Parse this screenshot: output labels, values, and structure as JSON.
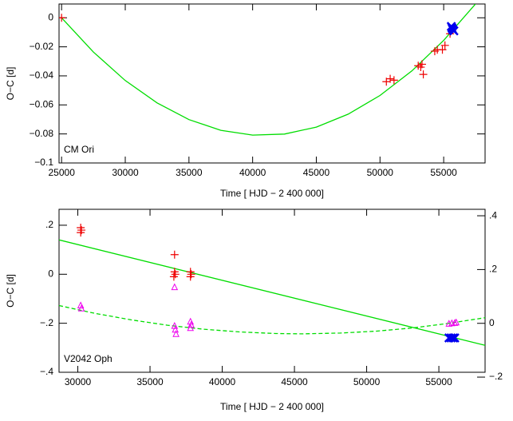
{
  "chart_data": [
    {
      "type": "scatter",
      "annotation": "CM Ori",
      "xlabel": "Time [ HJD − 2 400 000]",
      "ylabel": "O−C [d]",
      "xlim": [
        24800,
        58250
      ],
      "xticks": [
        25000,
        30000,
        35000,
        40000,
        45000,
        50000,
        55000
      ],
      "ylim": [
        -0.1,
        0.0095
      ],
      "yticks": [
        {
          "value": -0.1,
          "label": "−0.1"
        },
        {
          "value": -0.08,
          "label": "−0.08"
        },
        {
          "value": -0.06,
          "label": "−0.06"
        },
        {
          "value": -0.04,
          "label": "−0.04"
        },
        {
          "value": -0.02,
          "label": "−0.02"
        },
        0
      ],
      "series": [
        {
          "color": "#00dd00",
          "marker": "line",
          "dash": false,
          "x": [
            25000,
            27500,
            30000,
            32500,
            35000,
            37500,
            40000,
            42500,
            45000,
            47500,
            50000,
            52500,
            55000,
            57500
          ],
          "values": [
            0,
            -0.0236,
            -0.0432,
            -0.0586,
            -0.0701,
            -0.0775,
            -0.0808,
            -0.0801,
            -0.0753,
            -0.0664,
            -0.0535,
            -0.0366,
            -0.0156,
            0.0095
          ]
        },
        {
          "color": "#ee0000",
          "marker": "plus",
          "x": [
            25000,
            50500,
            50800,
            51100,
            53000,
            53200,
            53400,
            53300,
            54300,
            54500,
            54900,
            55100,
            55500,
            55700
          ],
          "values": [
            0,
            -0.044,
            -0.042,
            -0.043,
            -0.033,
            -0.034,
            -0.039,
            -0.032,
            -0.023,
            -0.022,
            -0.022,
            -0.019,
            -0.011,
            -0.008
          ]
        },
        {
          "color": "#0000ee",
          "marker": "x",
          "x": [
            55600,
            55650,
            55700,
            55800
          ],
          "values": [
            -0.006,
            -0.007,
            -0.008,
            -0.009
          ]
        }
      ]
    },
    {
      "type": "scatter",
      "annotation": "V2042 Oph",
      "xlabel": "Time [ HJD − 2 400 000]",
      "ylabel": "O−C [d]",
      "xlim": [
        28700,
        58200
      ],
      "xticks": [
        30000,
        35000,
        40000,
        45000,
        50000,
        55000
      ],
      "ylim": [
        -0.4,
        0.265
      ],
      "yticks": [
        {
          "value": -0.4,
          "label": "−.4"
        },
        {
          "value": -0.2,
          "label": "−.2"
        },
        0,
        {
          "value": 0.2,
          "label": ".2"
        }
      ],
      "y2lim": [
        -0.182,
        0.424
      ],
      "y2ticks": [
        {
          "value": -0.2,
          "label": "−.2"
        },
        0,
        {
          "value": 0.2,
          "label": ".2"
        },
        {
          "value": 0.4,
          "label": ".4"
        }
      ],
      "series": [
        {
          "color": "#00dd00",
          "marker": "line",
          "dash": false,
          "x": [
            28700,
            58200
          ],
          "values": [
            0.14,
            -0.29
          ]
        },
        {
          "color": "#00dd00",
          "marker": "line",
          "dash": true,
          "axis": "y2",
          "x": [
            28700,
            31200,
            33700,
            36200,
            38700,
            41200,
            43700,
            45500,
            48200,
            50700,
            53200,
            55700,
            58200
          ],
          "values": [
            0.066,
            0.037,
            0.013,
            -0.007,
            -0.022,
            -0.032,
            -0.038,
            -0.039,
            -0.036,
            -0.029,
            -0.017,
            0,
            0.021
          ]
        },
        {
          "color": "#ee0000",
          "marker": "plus",
          "x": [
            30200,
            30200,
            30250,
            36700,
            36700,
            36750,
            36650,
            37800,
            37850,
            37800
          ],
          "values": [
            0.19,
            0.17,
            0.18,
            0.08,
            0.01,
            0,
            -0.01,
            0.01,
            0,
            -0.01
          ]
        },
        {
          "color": "#0000ee",
          "marker": "x",
          "x": [
            55700,
            55850,
            56000,
            56100
          ],
          "values": [
            -0.26,
            -0.26,
            -0.26,
            -0.26
          ]
        },
        {
          "color": "#ee00ee",
          "marker": "triangle",
          "axis": "y2",
          "x": [
            30200,
            30250,
            36700,
            36700,
            36750,
            36800,
            37800,
            37850,
            37800,
            55700,
            55900,
            56100,
            56200
          ],
          "values": [
            0.066,
            0.055,
            0.134,
            -0.01,
            -0.024,
            -0.04,
            0.006,
            -0.006,
            -0.018,
            -0.002,
            0,
            0.001,
            0.003
          ]
        }
      ]
    }
  ]
}
